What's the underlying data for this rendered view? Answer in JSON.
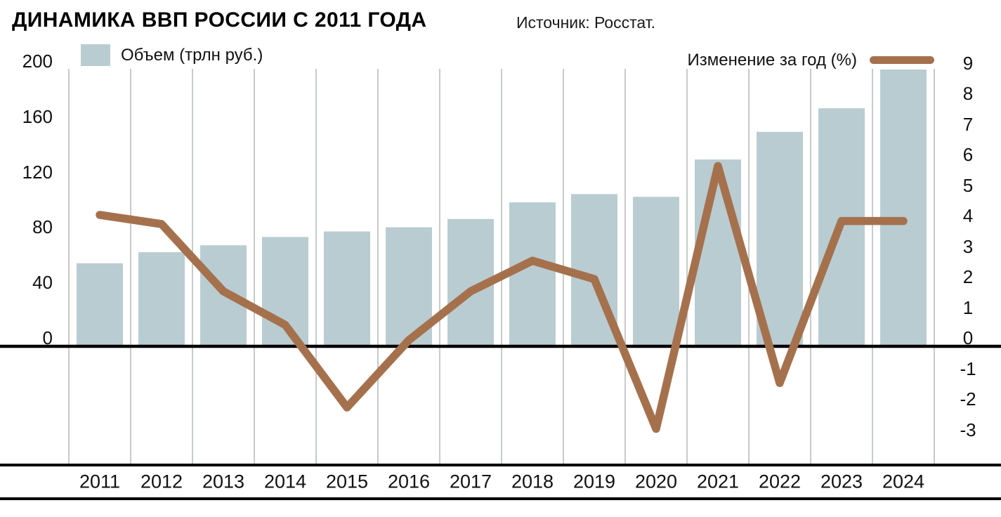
{
  "header": {
    "title": "ДИНАМИКА ВВП РОССИИ С 2011 ГОДА",
    "source": "Источник: Росстат."
  },
  "legend": {
    "bars_label": "Объем (трлн руб.)",
    "line_label": "Изменение за год (%)"
  },
  "chart_data": {
    "type": "bar+line combo",
    "title": "ДИНАМИКА ВВП РОССИИ С 2011 ГОДА",
    "source": "Источник: Росстат.",
    "categories": [
      "2011",
      "2012",
      "2013",
      "2014",
      "2015",
      "2016",
      "2017",
      "2018",
      "2019",
      "2020",
      "2021",
      "2022",
      "2023",
      "2024"
    ],
    "series": [
      {
        "name": "Объем (трлн руб.)",
        "type": "bar",
        "axis": "left",
        "values": [
          60,
          68,
          73,
          79,
          83,
          86,
          92,
          104,
          110,
          108,
          135,
          155,
          172,
          200
        ]
      },
      {
        "name": "Изменение за год (%)",
        "type": "line",
        "axis": "right",
        "values": [
          4.3,
          4.0,
          1.8,
          0.7,
          -2.0,
          0.2,
          1.8,
          2.8,
          2.2,
          -2.7,
          5.9,
          -1.2,
          4.1,
          4.1
        ]
      }
    ],
    "left_axis": {
      "label": "Объем (трлн руб.)",
      "ticks": [
        200,
        160,
        120,
        80,
        40,
        0
      ],
      "range": [
        0,
        205
      ]
    },
    "right_axis": {
      "label": "Изменение за год (%)",
      "ticks": [
        9,
        8,
        7,
        6,
        5,
        4,
        3,
        2,
        1,
        0,
        -1,
        -2,
        -3
      ],
      "range": [
        -3.9,
        9.1
      ]
    },
    "grid": "vertical column separators, on",
    "legend_position": "top",
    "colors": {
      "bar": "#b9ccd1",
      "line": "#a5714d",
      "gridline": "#b4b8b8",
      "axis_rule": "#000000"
    }
  }
}
